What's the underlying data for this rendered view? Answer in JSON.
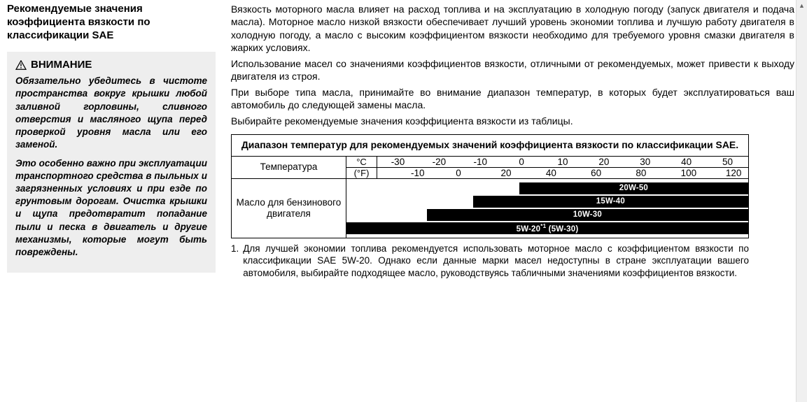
{
  "left": {
    "heading": "Рекомендуемые значения коэффициента вязкости по классификации SAE",
    "warning_title": "ВНИМАНИЕ",
    "warning_p1": "Обязательно убедитесь в чистоте пространства вокруг крышки любой заливной горловины, сливного отверстия и масляного щупа перед проверкой уровня масла или его заменой.",
    "warning_p2": "Это особенно важно при эксплуатации транспортного средства в пыльных и загрязненных условиях и при езде по грунтовым дорогам. Очистка крышки и щупа предотвратит попадание пыли и песка в двигатель и другие механизмы, которые могут быть повреждены."
  },
  "right": {
    "p1": "Вязкость моторного масла влияет на расход топлива и на эксплуатацию в холодную погоду (запуск двигателя и подача масла). Моторное масло низкой вязкости обеспечивает лучший уровень экономии топлива и лучшую работу двигателя в холодную погоду, а масло с высоким коэффициентом вязкости необходимо для требуемого уровня смазки двигателя в жарких условиях.",
    "p2": "Использование масел со значениями коэффициентов вязкости, отличными от рекомендуемых, может привести к выходу двигателя из строя.",
    "p3": "При выборе типа масла, принимайте во внимание диапазон температур, в которых будет эксплуатироваться ваш автомобиль до следующей замены масла.",
    "p4": "Выбирайте рекомендуемые значения коэффициента вязкости из таблицы."
  },
  "table": {
    "title": "Диапазон температур для рекомендуемых значений коэффициента вязкости по классификации SAE.",
    "temp_label": "Температура",
    "unit_c": "°C",
    "unit_f": "(°F)",
    "scale_c": [
      "-30",
      "-20",
      "-10",
      "0",
      "10",
      "20",
      "30",
      "40",
      "50"
    ],
    "scale_f": [
      "-10",
      "0",
      "20",
      "40",
      "60",
      "80",
      "100",
      "120"
    ],
    "oil_label": "Масло для бензинового двигателя",
    "bars": [
      {
        "label": "20W-50",
        "left_pct": 43.0,
        "right_pct": 0
      },
      {
        "label": "15W-40",
        "left_pct": 31.5,
        "right_pct": 0
      },
      {
        "label": "10W-30",
        "left_pct": 20.0,
        "right_pct": 0
      },
      {
        "label": "5W-20*¹ (5W-30)",
        "left_pct": 0,
        "right_pct": 0
      }
    ],
    "bar_bg": "#000000",
    "bar_text_color": "#ffffff"
  },
  "footnote": {
    "num": "1.",
    "text": "Для лучшей экономии топлива рекомендуется использовать моторное масло с коэффициентом вязкости по классификации SAE 5W-20. Однако если данные марки масел недоступны в стране эксплуатации вашего автомобиля, выбирайте подходящее масло, руководствуясь табличными значениями коэффициентов вязкости."
  }
}
